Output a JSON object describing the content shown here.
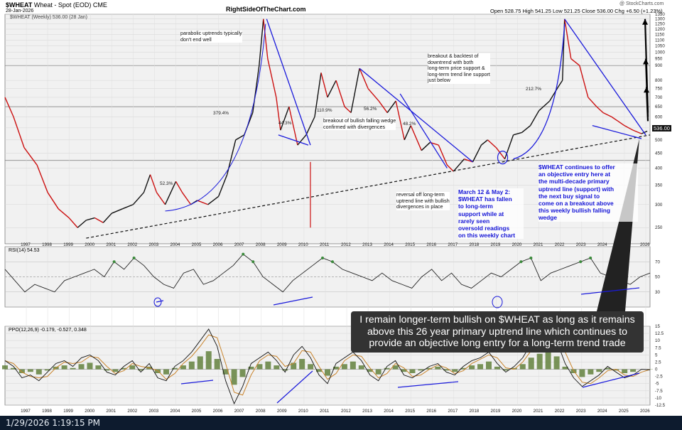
{
  "header": {
    "symbol": "$WHEAT",
    "name": "Wheat - Spot (EOD)",
    "exchange": "CME",
    "date": "28-Jan-2026",
    "site": "RightSideOfTheChart.com",
    "watermark": "@ StockCharts.com",
    "ohlc": "Open 528.75  High 541.25  Low 521.25  Close 536.00  Chg +6.50 (+1.23%)",
    "legend": "$WHEAT (Weekly) 536.00 (28 Jan)",
    "last_price": "536.00"
  },
  "status_bar": {
    "timestamp": "1/29/2026 1:19:15 PM"
  },
  "callout_text": "I remain longer-term bullish on $WHEAT as long as it remains above this 26 year primary uptrend line which continues to provide an objective long entry for a long-term trend trade",
  "annotations": {
    "parabolic": "parabolic uptrends typically\ndon't end well",
    "breakout_backtest": "breakout & backtest of\ndowntrend with both\nlong-term price support &\nlong-term trend line support\njust below",
    "falling_wedge": "breakout of bullish falling wedge\nconfirmed with divergences",
    "reversal": "reversal off long-term\nuptrend line with bullish\ndivergences in place",
    "march_may": "March 12 & May 2:\n$WHEAT has fallen\nto long-term\nsupport while at\nrarely seen\noversold readings\non this weekly chart",
    "objective_entry": "$WHEAT continues to offer\nan objective entry here at\nthe multi-decade primary\nuptrend line (support) with\nthe next buy signal to\ncome on a breakout above\nthis weekly bullish falling\nwedge"
  },
  "pct_labels": [
    "379.4%",
    "52.3%",
    "44.3%",
    "110.9%",
    "56.2%",
    "48.2%",
    "212.7%"
  ],
  "colors": {
    "price_up": "#111111",
    "price_down": "#cc1111",
    "trend": "#1a1adb",
    "ppo_hist": "#5a7a32",
    "rsi_fill": "#3b8a3b",
    "ppo_sig": "#c9842c"
  },
  "chart_data": [
    {
      "type": "line",
      "title": "$WHEAT (Weekly)",
      "ylabel": "",
      "log_scale": true,
      "ylim": [
        220,
        1350
      ],
      "y_ticks": [
        250,
        300,
        350,
        400,
        450,
        500,
        550,
        600,
        650,
        700,
        750,
        800,
        900,
        950,
        1000,
        1050,
        1100,
        1150,
        1200,
        1250,
        1300,
        1350
      ],
      "x_ticks": [
        "1997",
        "1998",
        "1999",
        "2000",
        "2001",
        "2002",
        "2003",
        "2004",
        "2005",
        "2006",
        "2007",
        "2008",
        "2009",
        "2010",
        "2011",
        "2012",
        "2013",
        "2014",
        "2015",
        "2016",
        "2017",
        "2018",
        "2019",
        "2020",
        "2021",
        "2022",
        "2023",
        "2024",
        "2025",
        "2026"
      ],
      "x": [
        1996.0,
        1996.4,
        1996.9,
        1997.5,
        1998.0,
        1998.5,
        1999.0,
        1999.4,
        1999.8,
        2000.2,
        2000.6,
        2001.0,
        2001.5,
        2002.0,
        2002.5,
        2002.8,
        2003.1,
        2003.5,
        2004.0,
        2004.3,
        2004.7,
        2005.0,
        2005.5,
        2006.0,
        2006.4,
        2006.8,
        2007.2,
        2007.6,
        2007.9,
        2008.1,
        2008.3,
        2008.7,
        2008.9,
        2009.3,
        2009.7,
        2010.1,
        2010.5,
        2010.8,
        2011.1,
        2011.5,
        2011.9,
        2012.2,
        2012.6,
        2013.0,
        2013.5,
        2013.9,
        2014.3,
        2014.7,
        2015.0,
        2015.5,
        2015.9,
        2016.3,
        2016.7,
        2017.0,
        2017.5,
        2017.9,
        2018.3,
        2018.6,
        2019.0,
        2019.4,
        2019.8,
        2020.2,
        2020.6,
        2021.0,
        2021.5,
        2021.9,
        2022.1,
        2022.2,
        2022.5,
        2022.9,
        2023.3,
        2023.7,
        2024.0,
        2024.4,
        2024.7,
        2025.0,
        2025.4,
        2025.8,
        2026.07
      ],
      "series": [
        {
          "values": [
            700,
            600,
            470,
            410,
            330,
            290,
            270,
            250,
            265,
            270,
            260,
            280,
            290,
            300,
            330,
            380,
            330,
            300,
            360,
            330,
            300,
            310,
            300,
            320,
            380,
            500,
            520,
            620,
            900,
            1300,
            950,
            700,
            540,
            650,
            480,
            520,
            600,
            850,
            700,
            800,
            650,
            620,
            880,
            750,
            680,
            620,
            680,
            500,
            560,
            460,
            490,
            480,
            410,
            390,
            430,
            420,
            480,
            500,
            470,
            430,
            520,
            530,
            560,
            630,
            680,
            760,
            800,
            1300,
            950,
            900,
            700,
            650,
            620,
            600,
            580,
            560,
            540,
            525,
            536
          ]
        }
      ]
    },
    {
      "type": "line",
      "title": "RSI(14) 54.53",
      "ylim": [
        10,
        90
      ],
      "y_ticks": [
        10,
        30,
        50,
        70,
        90
      ],
      "series": [
        {
          "values": [
            60,
            45,
            30,
            40,
            35,
            30,
            45,
            50,
            55,
            60,
            50,
            70,
            60,
            75,
            65,
            50,
            40,
            35,
            55,
            60,
            40,
            45,
            55,
            65,
            80,
            70,
            50,
            40,
            30,
            45,
            55,
            65,
            75,
            70,
            60,
            55,
            50,
            45,
            55,
            45,
            40,
            35,
            50,
            60,
            45,
            55,
            40,
            35,
            45,
            55,
            50,
            60,
            70,
            75,
            45,
            55,
            60,
            65,
            70,
            75,
            55,
            50,
            45,
            40,
            50,
            55
          ]
        }
      ]
    },
    {
      "type": "line",
      "title": "PPO(12,26,9) -0.179, -0.527, 0.348",
      "ylim": [
        -12.5,
        15
      ],
      "y_ticks": [
        -12.5,
        -10,
        -7.5,
        -5,
        -2.5,
        0,
        2.5,
        5,
        7.5,
        10,
        12.5,
        15
      ],
      "series": [
        {
          "values": [
            3,
            1,
            -3,
            -2,
            -4,
            -1,
            2,
            3,
            1,
            4,
            5,
            3,
            -1,
            -2,
            1,
            3,
            -1,
            2,
            -3,
            -4,
            1,
            3,
            6,
            10,
            14,
            8,
            -4,
            -12,
            -6,
            2,
            4,
            6,
            3,
            -1,
            5,
            8,
            4,
            -2,
            -5,
            2,
            4,
            6,
            3,
            -2,
            -4,
            1,
            3,
            -2,
            -3,
            -1,
            1,
            2,
            -1,
            -2,
            1,
            3,
            4,
            6,
            2,
            -1,
            1,
            4,
            9,
            12,
            14,
            10,
            2,
            -3,
            -6,
            -4,
            -2,
            1,
            -1,
            -3,
            -2,
            0,
            -0.2
          ]
        }
      ]
    }
  ]
}
